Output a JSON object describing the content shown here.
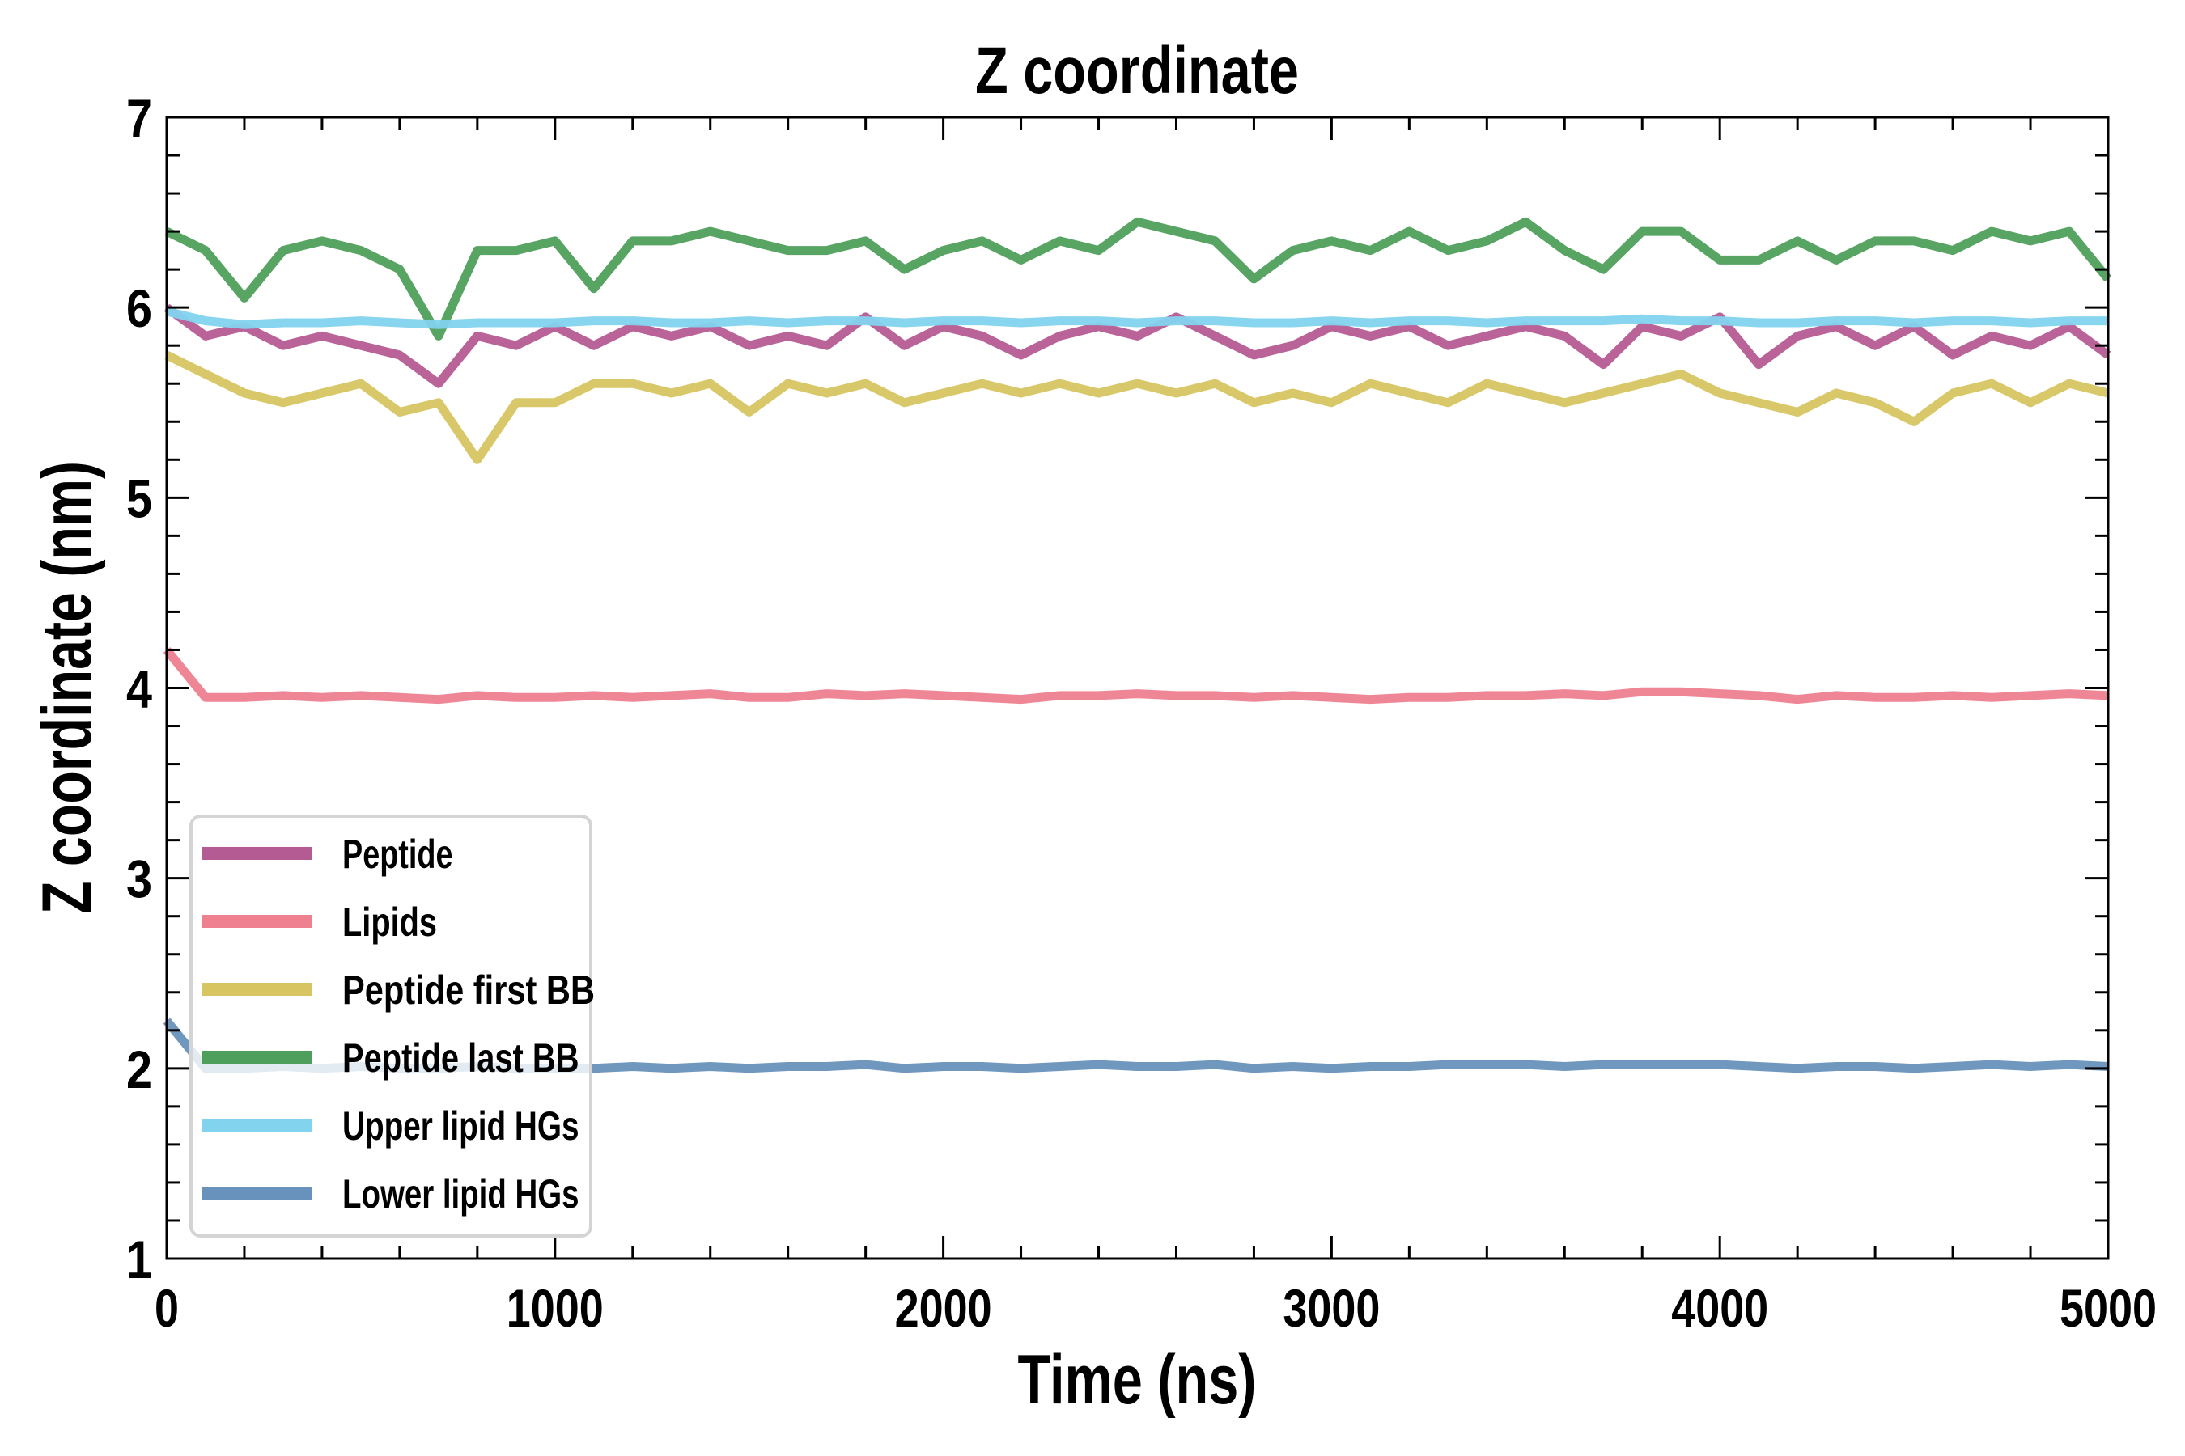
{
  "chart_data": {
    "type": "line",
    "title": "Z coordinate",
    "xlabel": "Time (ns)",
    "ylabel": "Z coordinate (nm)",
    "xlim": [
      0,
      5000
    ],
    "ylim": [
      1,
      7
    ],
    "xticks": [
      0,
      1000,
      2000,
      3000,
      4000,
      5000
    ],
    "yticks": [
      1,
      2,
      3,
      4,
      5,
      6,
      7
    ],
    "x_minor_step": 200,
    "y_minor_step": 0.2,
    "grid": false,
    "legend_position": "lower-left",
    "x": [
      0,
      100,
      200,
      300,
      400,
      500,
      600,
      700,
      800,
      900,
      1000,
      1100,
      1200,
      1300,
      1400,
      1500,
      1600,
      1700,
      1800,
      1900,
      2000,
      2100,
      2200,
      2300,
      2400,
      2500,
      2600,
      2700,
      2800,
      2900,
      3000,
      3100,
      3200,
      3300,
      3400,
      3500,
      3600,
      3700,
      3800,
      3900,
      4000,
      4100,
      4200,
      4300,
      4400,
      4500,
      4600,
      4700,
      4800,
      4900,
      5000
    ],
    "series": [
      {
        "name": "Peptide",
        "color": "#b55b93",
        "values": [
          6.0,
          5.85,
          5.9,
          5.8,
          5.85,
          5.8,
          5.75,
          5.6,
          5.85,
          5.8,
          5.9,
          5.8,
          5.9,
          5.85,
          5.9,
          5.8,
          5.85,
          5.8,
          5.95,
          5.8,
          5.9,
          5.85,
          5.75,
          5.85,
          5.9,
          5.85,
          5.95,
          5.85,
          5.75,
          5.8,
          5.9,
          5.85,
          5.9,
          5.8,
          5.85,
          5.9,
          5.85,
          5.7,
          5.9,
          5.85,
          5.95,
          5.7,
          5.85,
          5.9,
          5.8,
          5.9,
          5.75,
          5.85,
          5.8,
          5.9,
          5.75
        ]
      },
      {
        "name": "Lipids",
        "color": "#ee8090",
        "values": [
          4.2,
          3.95,
          3.95,
          3.96,
          3.95,
          3.96,
          3.95,
          3.94,
          3.96,
          3.95,
          3.95,
          3.96,
          3.95,
          3.96,
          3.97,
          3.95,
          3.95,
          3.97,
          3.96,
          3.97,
          3.96,
          3.95,
          3.94,
          3.96,
          3.96,
          3.97,
          3.96,
          3.96,
          3.95,
          3.96,
          3.95,
          3.94,
          3.95,
          3.95,
          3.96,
          3.96,
          3.97,
          3.96,
          3.98,
          3.98,
          3.97,
          3.96,
          3.94,
          3.96,
          3.95,
          3.95,
          3.96,
          3.95,
          3.96,
          3.97,
          3.96
        ]
      },
      {
        "name": "Peptide first BB",
        "color": "#d6c561",
        "values": [
          5.75,
          5.65,
          5.55,
          5.5,
          5.55,
          5.6,
          5.45,
          5.5,
          5.2,
          5.5,
          5.5,
          5.6,
          5.6,
          5.55,
          5.6,
          5.45,
          5.6,
          5.55,
          5.6,
          5.5,
          5.55,
          5.6,
          5.55,
          5.6,
          5.55,
          5.6,
          5.55,
          5.6,
          5.5,
          5.55,
          5.5,
          5.6,
          5.55,
          5.5,
          5.6,
          5.55,
          5.5,
          5.55,
          5.6,
          5.65,
          5.55,
          5.5,
          5.45,
          5.55,
          5.5,
          5.4,
          5.55,
          5.6,
          5.5,
          5.6,
          5.55
        ]
      },
      {
        "name": "Peptide last BB",
        "color": "#4e9f5b",
        "values": [
          6.4,
          6.3,
          6.05,
          6.3,
          6.35,
          6.3,
          6.2,
          5.85,
          6.3,
          6.3,
          6.35,
          6.1,
          6.35,
          6.35,
          6.4,
          6.35,
          6.3,
          6.3,
          6.35,
          6.2,
          6.3,
          6.35,
          6.25,
          6.35,
          6.3,
          6.45,
          6.4,
          6.35,
          6.15,
          6.3,
          6.35,
          6.3,
          6.4,
          6.3,
          6.35,
          6.45,
          6.3,
          6.2,
          6.4,
          6.4,
          6.25,
          6.25,
          6.35,
          6.25,
          6.35,
          6.35,
          6.3,
          6.4,
          6.35,
          6.4,
          6.15
        ]
      },
      {
        "name": "Upper lipid HGs",
        "color": "#82d3ee",
        "values": [
          5.98,
          5.93,
          5.91,
          5.92,
          5.92,
          5.93,
          5.92,
          5.91,
          5.92,
          5.92,
          5.92,
          5.93,
          5.93,
          5.92,
          5.92,
          5.93,
          5.92,
          5.93,
          5.93,
          5.92,
          5.93,
          5.93,
          5.92,
          5.93,
          5.93,
          5.92,
          5.93,
          5.93,
          5.92,
          5.92,
          5.93,
          5.92,
          5.93,
          5.93,
          5.92,
          5.93,
          5.93,
          5.93,
          5.94,
          5.93,
          5.93,
          5.92,
          5.92,
          5.93,
          5.93,
          5.92,
          5.93,
          5.93,
          5.92,
          5.93,
          5.93
        ]
      },
      {
        "name": "Lower lipid HGs",
        "color": "#6891bb",
        "values": [
          2.25,
          2.0,
          2.0,
          2.01,
          2.0,
          2.01,
          2.0,
          2.0,
          2.01,
          2.0,
          2.0,
          2.0,
          2.01,
          2.0,
          2.01,
          2.0,
          2.01,
          2.01,
          2.02,
          2.0,
          2.01,
          2.01,
          2.0,
          2.01,
          2.02,
          2.01,
          2.01,
          2.02,
          2.0,
          2.01,
          2.0,
          2.01,
          2.01,
          2.02,
          2.02,
          2.02,
          2.01,
          2.02,
          2.02,
          2.02,
          2.02,
          2.01,
          2.0,
          2.01,
          2.01,
          2.0,
          2.01,
          2.02,
          2.01,
          2.02,
          2.01
        ]
      }
    ]
  }
}
